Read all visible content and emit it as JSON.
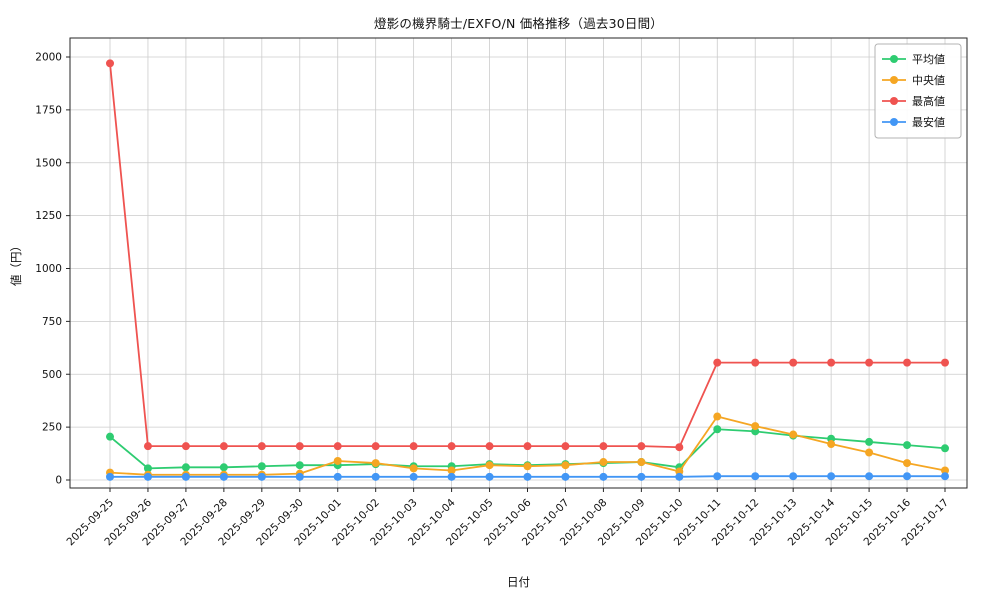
{
  "chart_data": {
    "type": "line",
    "title": "燈影の機界騎士/EXFO/N 価格推移（過去30日間）",
    "xlabel": "日付",
    "ylabel": "値（円）",
    "grid": true,
    "grid_color": "#cccccc",
    "background": "#ffffff",
    "legend_position": "top-right",
    "ylim": [
      0,
      2000
    ],
    "yticks": [
      0,
      250,
      500,
      750,
      1000,
      1250,
      1500,
      1750,
      2000
    ],
    "x": [
      "2025-09-25",
      "2025-09-26",
      "2025-09-27",
      "2025-09-28",
      "2025-09-29",
      "2025-09-30",
      "2025-10-01",
      "2025-10-02",
      "2025-10-03",
      "2025-10-04",
      "2025-10-05",
      "2025-10-06",
      "2025-10-07",
      "2025-10-08",
      "2025-10-09",
      "2025-10-10",
      "2025-10-11",
      "2025-10-12",
      "2025-10-13",
      "2025-10-14",
      "2025-10-15",
      "2025-10-16",
      "2025-10-17"
    ],
    "series": [
      {
        "key": "average",
        "name": "平均値",
        "color": "#2ecc71",
        "values": [
          205,
          55,
          60,
          60,
          65,
          70,
          70,
          75,
          65,
          65,
          75,
          70,
          75,
          80,
          85,
          60,
          240,
          230,
          210,
          195,
          180,
          165,
          150
        ]
      },
      {
        "key": "median",
        "name": "中央値",
        "color": "#f5a623",
        "values": [
          35,
          25,
          25,
          25,
          25,
          30,
          90,
          80,
          55,
          45,
          70,
          65,
          70,
          85,
          85,
          40,
          300,
          255,
          215,
          170,
          130,
          80,
          45
        ]
      },
      {
        "key": "max",
        "name": "最高値",
        "color": "#ef5350",
        "values": [
          1970,
          160,
          160,
          160,
          160,
          160,
          160,
          160,
          160,
          160,
          160,
          160,
          160,
          160,
          160,
          155,
          555,
          555,
          555,
          555,
          555,
          555,
          555
        ]
      },
      {
        "key": "min",
        "name": "最安値",
        "color": "#4296f5",
        "values": [
          15,
          15,
          15,
          15,
          15,
          15,
          15,
          15,
          15,
          15,
          15,
          15,
          15,
          15,
          15,
          15,
          18,
          18,
          18,
          18,
          18,
          18,
          18
        ]
      }
    ]
  }
}
